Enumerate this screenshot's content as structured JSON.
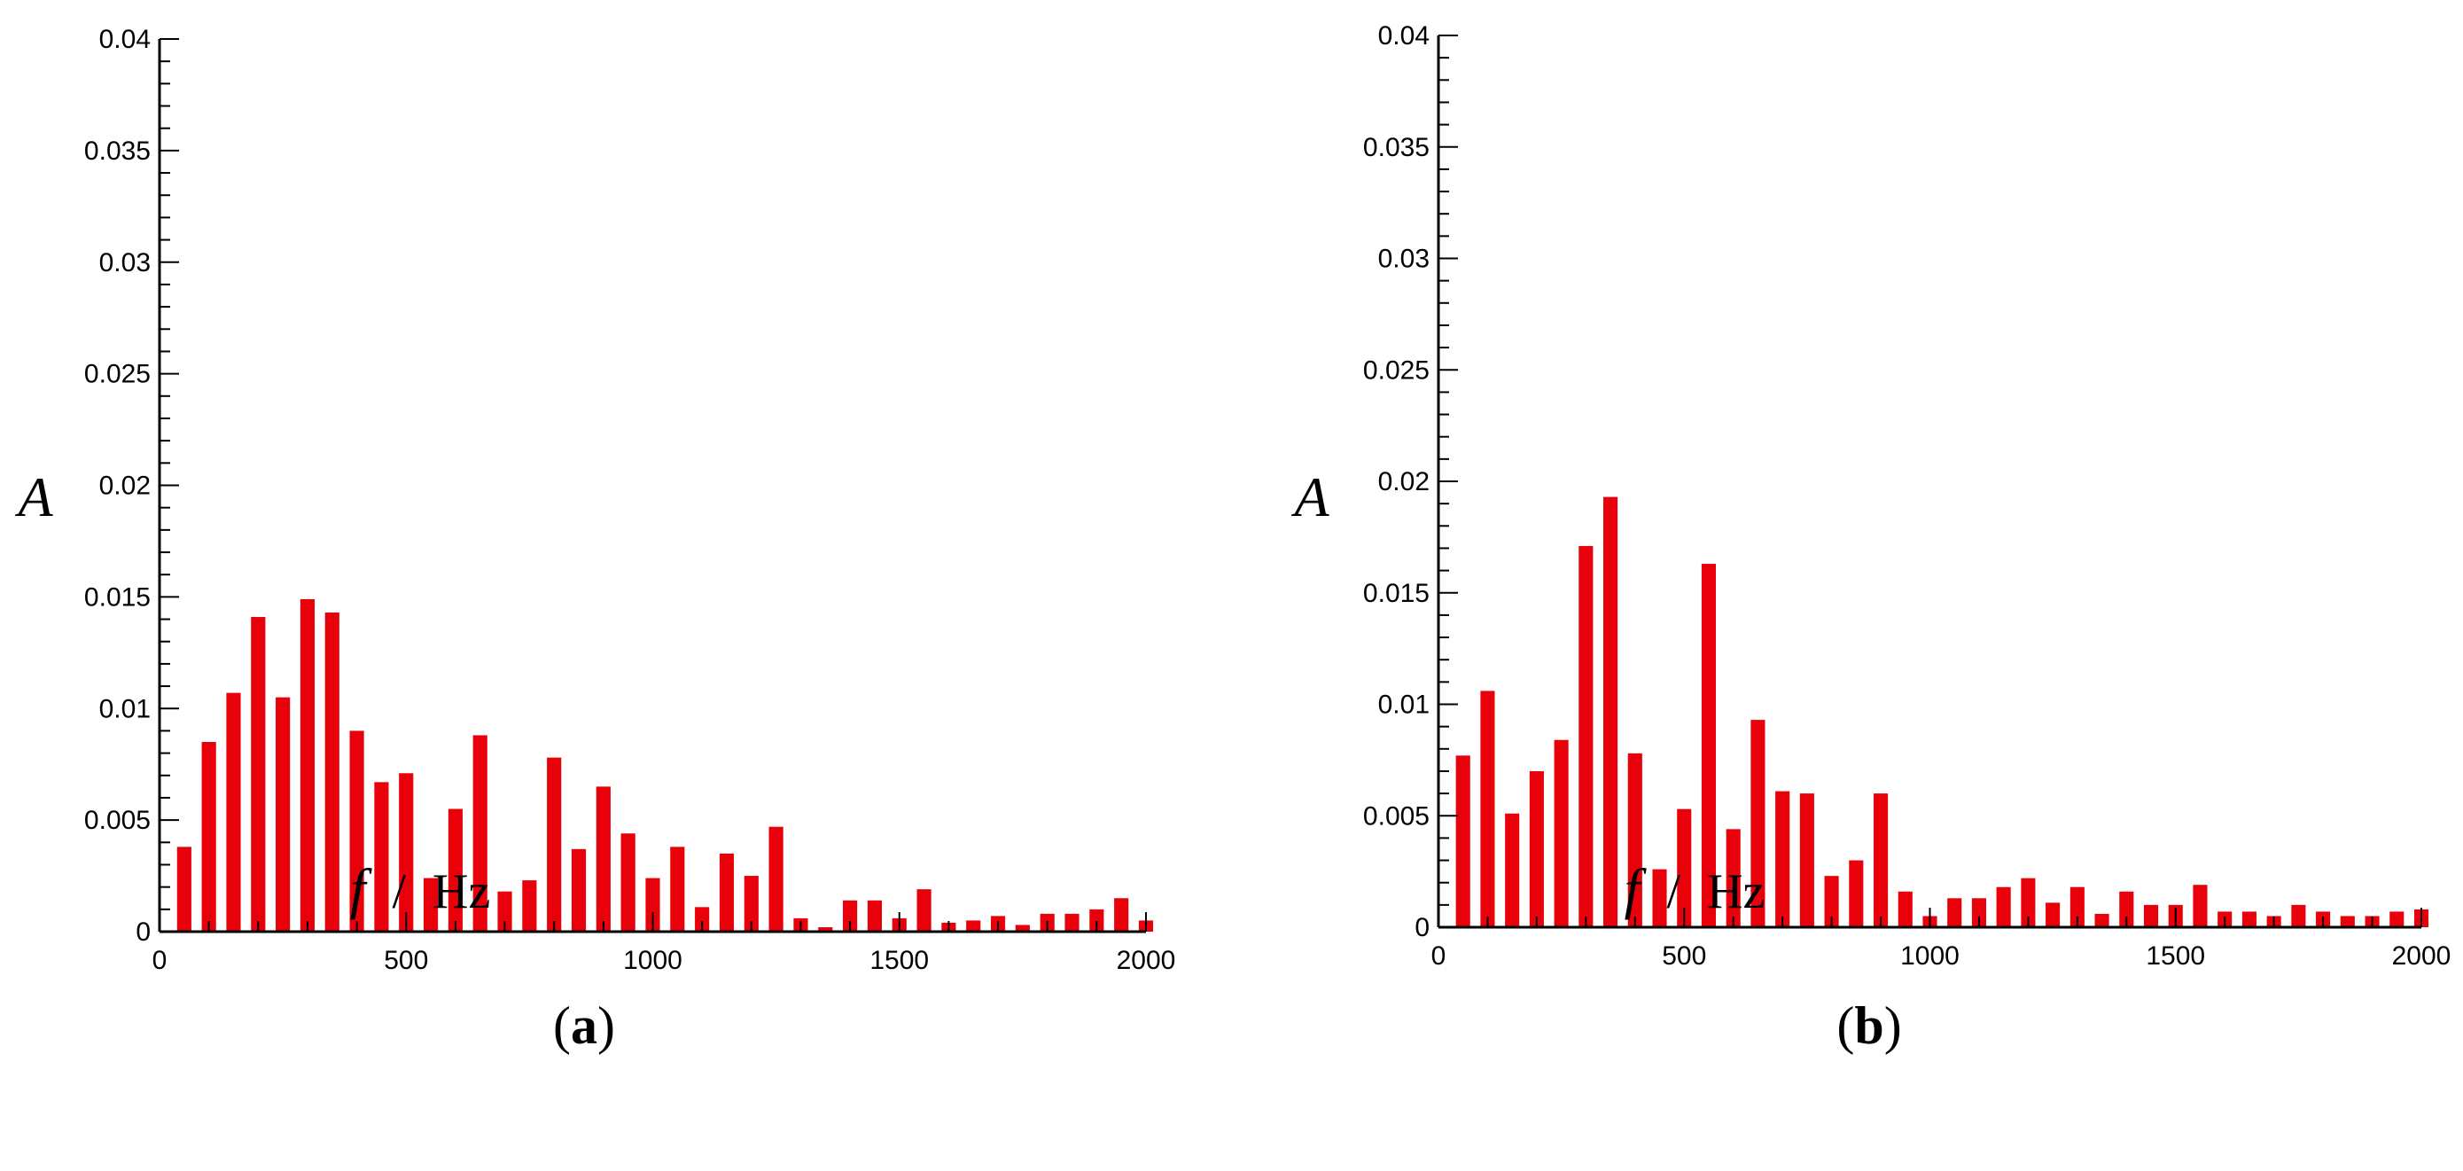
{
  "figure": {
    "panels": [
      {
        "caption_letter": "a",
        "ylabel": "A",
        "xlabel_var": "f",
        "xlabel_sep": "/",
        "xlabel_unit": "Hz"
      },
      {
        "caption_letter": "b",
        "ylabel": "A",
        "xlabel_var": "f",
        "xlabel_sep": "/",
        "xlabel_unit": "Hz"
      }
    ]
  },
  "chart_data": [
    {
      "type": "bar",
      "panel": "(a)",
      "bar_color": "#e8000b",
      "xlim": [
        0,
        2000
      ],
      "ylim": [
        0,
        0.04
      ],
      "xticks": [
        0,
        500,
        1000,
        1500,
        2000
      ],
      "yticks": [
        0,
        0.005,
        0.01,
        0.015,
        0.02,
        0.025,
        0.03,
        0.035,
        0.04
      ],
      "xticklabels": [
        "0",
        "500",
        "1000",
        "1500",
        "2000"
      ],
      "yticklabels": [
        "0",
        "0.005",
        "0.01",
        "0.015",
        "0.02",
        "0.025",
        "0.03",
        "0.035",
        "0.04"
      ],
      "xlabel": "f / Hz",
      "ylabel": "A",
      "grid": false,
      "x": [
        50,
        100,
        150,
        200,
        250,
        300,
        350,
        400,
        450,
        500,
        550,
        600,
        650,
        700,
        750,
        800,
        850,
        900,
        950,
        1000,
        1050,
        1100,
        1150,
        1200,
        1250,
        1300,
        1350,
        1400,
        1450,
        1500,
        1550,
        1600,
        1650,
        1700,
        1750,
        1800,
        1850,
        1900,
        1950,
        2000
      ],
      "values": [
        0.0038,
        0.0085,
        0.0107,
        0.0141,
        0.0105,
        0.0149,
        0.0143,
        0.009,
        0.0067,
        0.0071,
        0.0024,
        0.0055,
        0.0088,
        0.0018,
        0.0023,
        0.0078,
        0.0037,
        0.0065,
        0.0044,
        0.0024,
        0.0038,
        0.0011,
        0.0035,
        0.0025,
        0.0047,
        0.0006,
        0.0002,
        0.0014,
        0.0014,
        0.0006,
        0.0019,
        0.0004,
        0.0005,
        0.0007,
        0.0003,
        0.0008,
        0.0008,
        0.001,
        0.0015,
        0.0005
      ]
    },
    {
      "type": "bar",
      "panel": "(b)",
      "bar_color": "#e8000b",
      "xlim": [
        0,
        2000
      ],
      "ylim": [
        0,
        0.04
      ],
      "xticks": [
        0,
        500,
        1000,
        1500,
        2000
      ],
      "yticks": [
        0,
        0.005,
        0.01,
        0.015,
        0.02,
        0.025,
        0.03,
        0.035,
        0.04
      ],
      "xticklabels": [
        "0",
        "500",
        "1000",
        "1500",
        "2000"
      ],
      "yticklabels": [
        "0",
        "0.005",
        "0.01",
        "0.015",
        "0.02",
        "0.025",
        "0.03",
        "0.035",
        "0.04"
      ],
      "xlabel": "f / Hz",
      "ylabel": "A",
      "grid": false,
      "x": [
        50,
        100,
        150,
        200,
        250,
        300,
        350,
        400,
        450,
        500,
        550,
        600,
        650,
        700,
        750,
        800,
        850,
        900,
        950,
        1000,
        1050,
        1100,
        1150,
        1200,
        1250,
        1300,
        1350,
        1400,
        1450,
        1500,
        1550,
        1600,
        1650,
        1700,
        1750,
        1800,
        1850,
        1900,
        1950,
        2000
      ],
      "values": [
        0.0077,
        0.0106,
        0.0051,
        0.007,
        0.0084,
        0.0171,
        0.0193,
        0.0078,
        0.0026,
        0.0053,
        0.0163,
        0.0044,
        0.0093,
        0.0061,
        0.006,
        0.0023,
        0.003,
        0.006,
        0.0016,
        0.0005,
        0.0013,
        0.0013,
        0.0018,
        0.0022,
        0.0011,
        0.0018,
        0.0006,
        0.0016,
        0.001,
        0.001,
        0.0019,
        0.0007,
        0.0007,
        0.0005,
        0.001,
        0.0007,
        0.0005,
        0.0005,
        0.0007,
        0.0008
      ]
    }
  ]
}
